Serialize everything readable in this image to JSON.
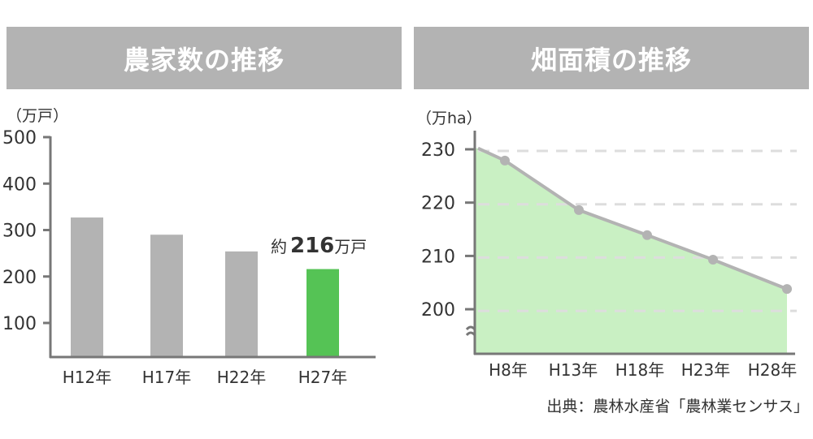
{
  "chart_data": [
    {
      "type": "bar",
      "title": "農家数の推移",
      "ylabel": "（万戸）",
      "categories": [
        "H12年",
        "H17年",
        "H22年",
        "H27年"
      ],
      "values": [
        327,
        290,
        254,
        216
      ],
      "yticks": [
        100,
        200,
        300,
        400,
        500
      ],
      "ylim": [
        27,
        500
      ],
      "grid": false,
      "highlight_index": 3,
      "annotation": {
        "prefix": "約",
        "value": "216",
        "unit": "万戸"
      },
      "colors": {
        "bar": "#b3b3b3",
        "highlight": "#55c355",
        "axis": "#777777"
      }
    },
    {
      "type": "area",
      "title": "畑面積の推移",
      "ylabel": "（万ha）",
      "categories": [
        "H8年",
        "H13年",
        "H18年",
        "H23年",
        "H28年"
      ],
      "start_value": 230.5,
      "values": [
        228.2,
        218.9,
        214.2,
        209.6,
        204.1
      ],
      "yticks": [
        200,
        210,
        220,
        230
      ],
      "ylim": [
        192,
        231
      ],
      "axis_break": true,
      "grid": "dashed",
      "colors": {
        "fill": "#c9f0c3",
        "line": "#b3b3b3",
        "grid": "#dddddd",
        "axis": "#777777"
      }
    }
  ],
  "source": "出典：農林水産省「農林業センサス」"
}
